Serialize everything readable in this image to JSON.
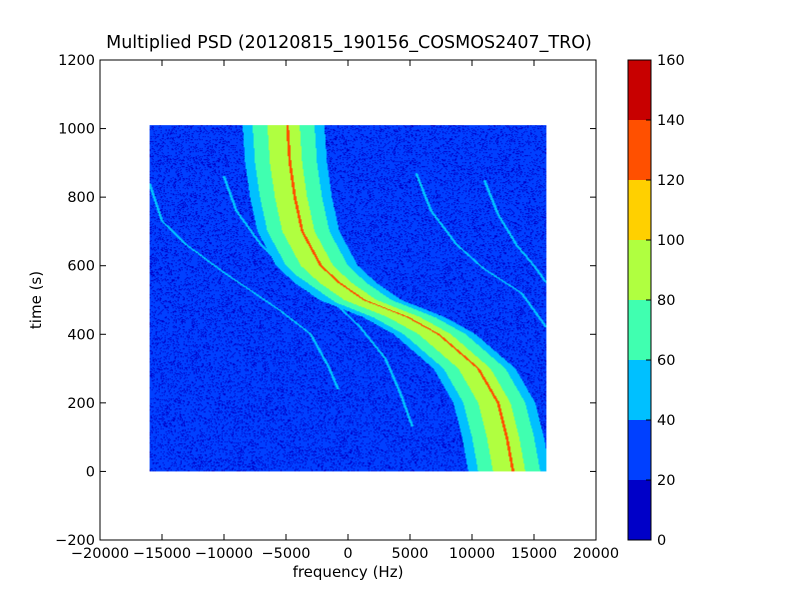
{
  "chart_data": {
    "type": "heatmap",
    "title": "Multiplied PSD (20120815_190156_COSMOS2407_TRO)",
    "xlabel": "frequency (Hz)",
    "ylabel": "time (s)",
    "xlim": [
      -20000,
      20000
    ],
    "ylim": [
      -200,
      1200
    ],
    "x_ticks": [
      -20000,
      -15000,
      -10000,
      -5000,
      0,
      5000,
      10000,
      15000,
      20000
    ],
    "y_ticks": [
      -200,
      0,
      200,
      400,
      600,
      800,
      1000,
      1200
    ],
    "data_extent": {
      "x": [
        -16000,
        16000
      ],
      "y": [
        0,
        1010
      ]
    },
    "colorbar": {
      "levels": [
        0,
        20,
        40,
        60,
        80,
        100,
        120,
        140,
        160
      ],
      "colors": [
        "#0000c8",
        "#0040ff",
        "#00c0ff",
        "#40ffb0",
        "#b0ff40",
        "#ffd000",
        "#ff5000",
        "#c80000"
      ]
    },
    "background_level": 25,
    "main_track": {
      "description": "Doppler S-curve, center frequency vs time",
      "points": [
        {
          "t": 0,
          "f": 13000
        },
        {
          "t": 100,
          "f": 12500
        },
        {
          "t": 200,
          "f": 11800
        },
        {
          "t": 300,
          "f": 10200
        },
        {
          "t": 400,
          "f": 7000
        },
        {
          "t": 450,
          "f": 4500
        },
        {
          "t": 500,
          "f": 1000
        },
        {
          "t": 550,
          "f": -1000
        },
        {
          "t": 600,
          "f": -2500
        },
        {
          "t": 700,
          "f": -4000
        },
        {
          "t": 800,
          "f": -4600
        },
        {
          "t": 900,
          "f": -5000
        },
        {
          "t": 1010,
          "f": -5200
        }
      ],
      "bands": [
        {
          "half_width": 3300,
          "level": 50
        },
        {
          "half_width": 2500,
          "level": 70
        },
        {
          "half_width": 1300,
          "level": 85
        }
      ],
      "peak_level": 130
    },
    "faint_tracks": [
      {
        "points": [
          {
            "t": 840,
            "f": -16000
          },
          {
            "t": 730,
            "f": -15000
          },
          {
            "t": 660,
            "f": -13000
          },
          {
            "t": 580,
            "f": -10000
          },
          {
            "t": 470,
            "f": -5500
          },
          {
            "t": 400,
            "f": -3000
          },
          {
            "t": 300,
            "f": -1500
          },
          {
            "t": 240,
            "f": -800
          }
        ]
      },
      {
        "points": [
          {
            "t": 860,
            "f": -10000
          },
          {
            "t": 760,
            "f": -9000
          },
          {
            "t": 660,
            "f": -7000
          },
          {
            "t": 590,
            "f": -5000
          },
          {
            "t": 490,
            "f": -1000
          },
          {
            "t": 420,
            "f": 1000
          },
          {
            "t": 330,
            "f": 3000
          },
          {
            "t": 230,
            "f": 4200
          },
          {
            "t": 130,
            "f": 5200
          }
        ]
      },
      {
        "points": [
          {
            "t": 870,
            "f": 5500
          },
          {
            "t": 760,
            "f": 6700
          },
          {
            "t": 660,
            "f": 8800
          },
          {
            "t": 590,
            "f": 11000
          },
          {
            "t": 520,
            "f": 14000
          },
          {
            "t": 420,
            "f": 16000
          }
        ]
      },
      {
        "points": [
          {
            "t": 850,
            "f": 11000
          },
          {
            "t": 750,
            "f": 12100
          },
          {
            "t": 660,
            "f": 13600
          },
          {
            "t": 600,
            "f": 15000
          },
          {
            "t": 550,
            "f": 16000
          }
        ]
      }
    ]
  }
}
